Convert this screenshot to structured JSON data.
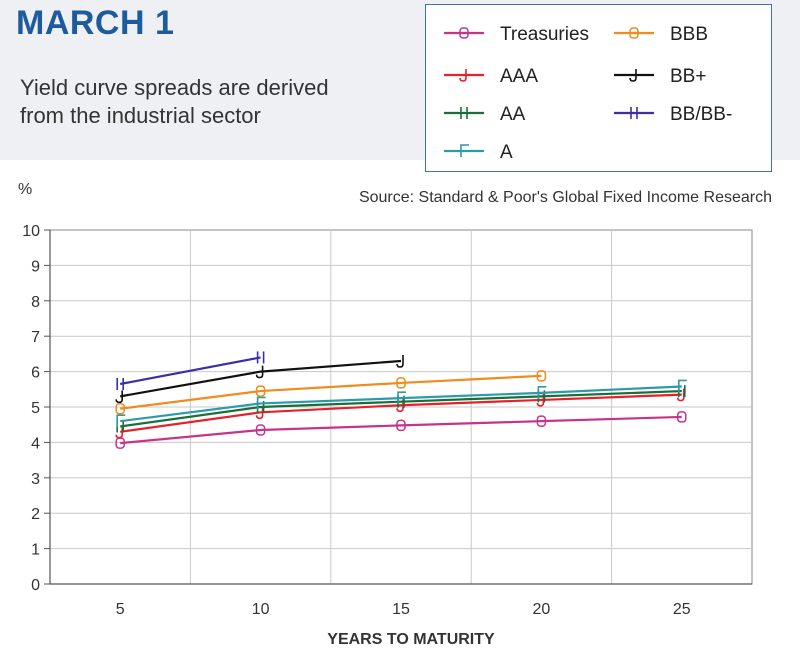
{
  "header": {
    "title": "MARCH 1",
    "subtitle_lines": [
      "Yield curve spreads are derived",
      "from the industrial sector"
    ]
  },
  "chart_data": {
    "type": "line",
    "ylabel": "%",
    "xlabel": "YEARS TO MATURITY",
    "source": "Source: Standard & Poor's Global Fixed Income Research",
    "x": [
      5,
      10,
      15,
      20,
      25
    ],
    "xticks": [
      "5",
      "10",
      "15",
      "20",
      "25"
    ],
    "yticks": [
      "0",
      "1",
      "2",
      "3",
      "4",
      "5",
      "6",
      "7",
      "8",
      "9",
      "10"
    ],
    "ylim": [
      0,
      10
    ],
    "xlim": [
      2.5,
      27.5
    ],
    "grid": true,
    "legend_position": "top-right",
    "series": [
      {
        "name": "Treasuries",
        "color": "#c8338a",
        "marker": "B",
        "values": [
          3.98,
          4.35,
          4.48,
          4.6,
          4.72
        ]
      },
      {
        "name": "AAA",
        "color": "#e8202a",
        "marker": "J",
        "values": [
          4.3,
          4.85,
          5.05,
          5.2,
          5.35
        ]
      },
      {
        "name": "AA",
        "color": "#1a6e3a",
        "marker": "H",
        "values": [
          4.45,
          5.0,
          5.15,
          5.3,
          5.45
        ]
      },
      {
        "name": "A",
        "color": "#2c9aa8",
        "marker": "F",
        "values": [
          4.6,
          5.1,
          5.25,
          5.4,
          5.58
        ]
      },
      {
        "name": "BBB",
        "color": "#f28a1c",
        "marker": "B",
        "values": [
          4.95,
          5.45,
          5.68,
          5.88,
          null
        ]
      },
      {
        "name": "BB+",
        "color": "#111111",
        "marker": "J",
        "values": [
          5.3,
          6.0,
          6.3,
          null,
          null
        ]
      },
      {
        "name": "BB/BB-",
        "color": "#3b2ea8",
        "marker": "H",
        "values": [
          5.65,
          6.4,
          null,
          null,
          null
        ]
      }
    ]
  }
}
